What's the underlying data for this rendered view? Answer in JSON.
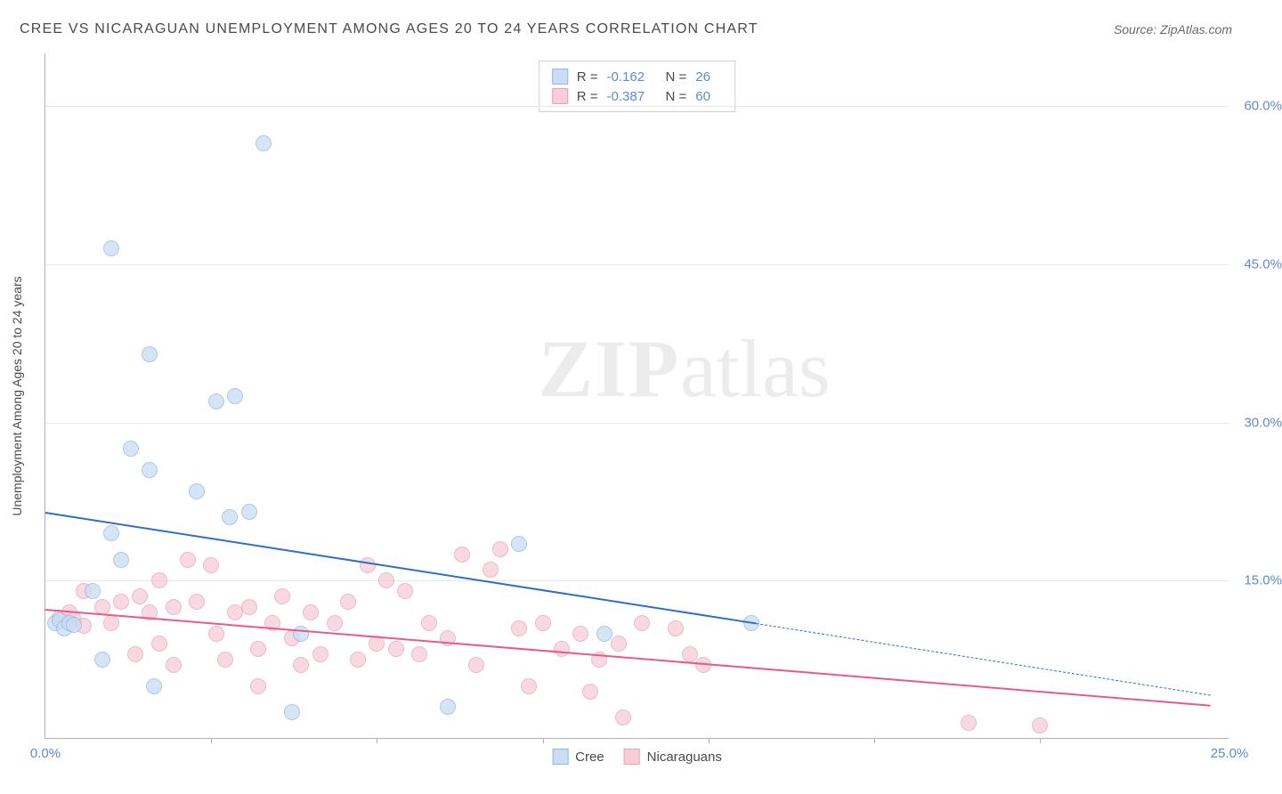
{
  "title": "CREE VS NICARAGUAN UNEMPLOYMENT AMONG AGES 20 TO 24 YEARS CORRELATION CHART",
  "source": "Source: ZipAtlas.com",
  "watermark_bold": "ZIP",
  "watermark_rest": "atlas",
  "y_axis_label": "Unemployment Among Ages 20 to 24 years",
  "chart": {
    "type": "scatter",
    "x_domain": [
      0,
      25
    ],
    "y_domain": [
      0,
      65
    ],
    "background": "#ffffff",
    "grid_color": "#e8e8e8",
    "axis_color": "#b0b0b0",
    "axis_label_color": "#5b8bd4",
    "x_ticks": [
      0,
      25
    ],
    "x_tick_labels": [
      "0.0%",
      "25.0%"
    ],
    "x_minor_ticks": [
      3.5,
      7,
      10.5,
      14,
      17.5,
      21
    ],
    "y_ticks": [
      15,
      30,
      45,
      60
    ],
    "y_tick_labels": [
      "15.0%",
      "30.0%",
      "45.0%",
      "60.0%"
    ],
    "y_grid": [
      15,
      30,
      45,
      60
    ],
    "marker_radius": 9,
    "series": [
      {
        "name": "Cree",
        "label": "Cree",
        "fill": "#c9ddf3",
        "stroke": "#8fb8e6",
        "fill_opacity": 0.75,
        "trend_color": "#2f6fc4",
        "trend_width": 2.5,
        "trend_solid": {
          "x1": 0,
          "y1": 21.5,
          "x2": 15,
          "y2": 11
        },
        "trend_dashed": {
          "x1": 15,
          "y1": 11,
          "x2": 24.6,
          "y2": 4.2
        },
        "r_value": "-0.162",
        "n_value": "26",
        "points": [
          [
            0.2,
            11
          ],
          [
            0.3,
            11.2
          ],
          [
            0.4,
            10.5
          ],
          [
            0.5,
            11
          ],
          [
            0.6,
            10.8
          ],
          [
            1.0,
            14
          ],
          [
            1.2,
            7.5
          ],
          [
            1.4,
            46.5
          ],
          [
            1.4,
            19.5
          ],
          [
            1.6,
            17
          ],
          [
            1.8,
            27.5
          ],
          [
            2.2,
            36.5
          ],
          [
            2.2,
            25.5
          ],
          [
            2.3,
            5
          ],
          [
            3.2,
            23.5
          ],
          [
            3.6,
            32
          ],
          [
            4.0,
            32.5
          ],
          [
            3.9,
            21
          ],
          [
            4.3,
            21.5
          ],
          [
            4.6,
            56.5
          ],
          [
            5.2,
            2.5
          ],
          [
            5.4,
            10
          ],
          [
            8.5,
            3
          ],
          [
            10.0,
            18.5
          ],
          [
            11.8,
            10
          ],
          [
            14.9,
            11
          ]
        ]
      },
      {
        "name": "Nicaraguans",
        "label": "Nicaraguans",
        "fill": "#f6cdd8",
        "stroke": "#eaa3b6",
        "fill_opacity": 0.75,
        "trend_color": "#e75a8a",
        "trend_width": 2,
        "trend_solid": {
          "x1": 0,
          "y1": 12.3,
          "x2": 24.6,
          "y2": 3.2
        },
        "trend_dashed": null,
        "r_value": "-0.387",
        "n_value": "60",
        "points": [
          [
            0.3,
            11.5
          ],
          [
            0.5,
            12
          ],
          [
            0.6,
            11.3
          ],
          [
            0.8,
            10.7
          ],
          [
            0.8,
            14
          ],
          [
            1.2,
            12.5
          ],
          [
            1.4,
            11
          ],
          [
            1.6,
            13
          ],
          [
            1.9,
            8
          ],
          [
            2.0,
            13.5
          ],
          [
            2.2,
            12
          ],
          [
            2.4,
            9
          ],
          [
            2.4,
            15
          ],
          [
            2.7,
            12.5
          ],
          [
            2.7,
            7
          ],
          [
            3.0,
            17
          ],
          [
            3.2,
            13
          ],
          [
            3.5,
            16.5
          ],
          [
            3.6,
            10
          ],
          [
            3.8,
            7.5
          ],
          [
            4.0,
            12
          ],
          [
            4.3,
            12.5
          ],
          [
            4.5,
            8.5
          ],
          [
            4.5,
            5
          ],
          [
            4.8,
            11
          ],
          [
            5.0,
            13.5
          ],
          [
            5.2,
            9.5
          ],
          [
            5.4,
            7
          ],
          [
            5.6,
            12
          ],
          [
            5.8,
            8
          ],
          [
            6.1,
            11
          ],
          [
            6.4,
            13
          ],
          [
            6.6,
            7.5
          ],
          [
            6.8,
            16.5
          ],
          [
            7.0,
            9
          ],
          [
            7.2,
            15
          ],
          [
            7.4,
            8.5
          ],
          [
            7.6,
            14
          ],
          [
            7.9,
            8
          ],
          [
            8.1,
            11
          ],
          [
            8.5,
            9.5
          ],
          [
            8.8,
            17.5
          ],
          [
            9.1,
            7
          ],
          [
            9.4,
            16
          ],
          [
            9.6,
            18
          ],
          [
            10.0,
            10.5
          ],
          [
            10.2,
            5
          ],
          [
            10.5,
            11
          ],
          [
            10.9,
            8.5
          ],
          [
            11.3,
            10
          ],
          [
            11.5,
            4.5
          ],
          [
            11.7,
            7.5
          ],
          [
            12.1,
            9
          ],
          [
            12.2,
            2
          ],
          [
            12.6,
            11
          ],
          [
            13.3,
            10.5
          ],
          [
            13.6,
            8
          ],
          [
            19.5,
            1.5
          ],
          [
            21.0,
            1.3
          ],
          [
            13.9,
            7
          ]
        ]
      }
    ]
  },
  "stats_box": {
    "r_label": "R =",
    "n_label": "N ="
  },
  "legend_bottom": {
    "series1": "Cree",
    "series2": "Nicaraguans"
  }
}
